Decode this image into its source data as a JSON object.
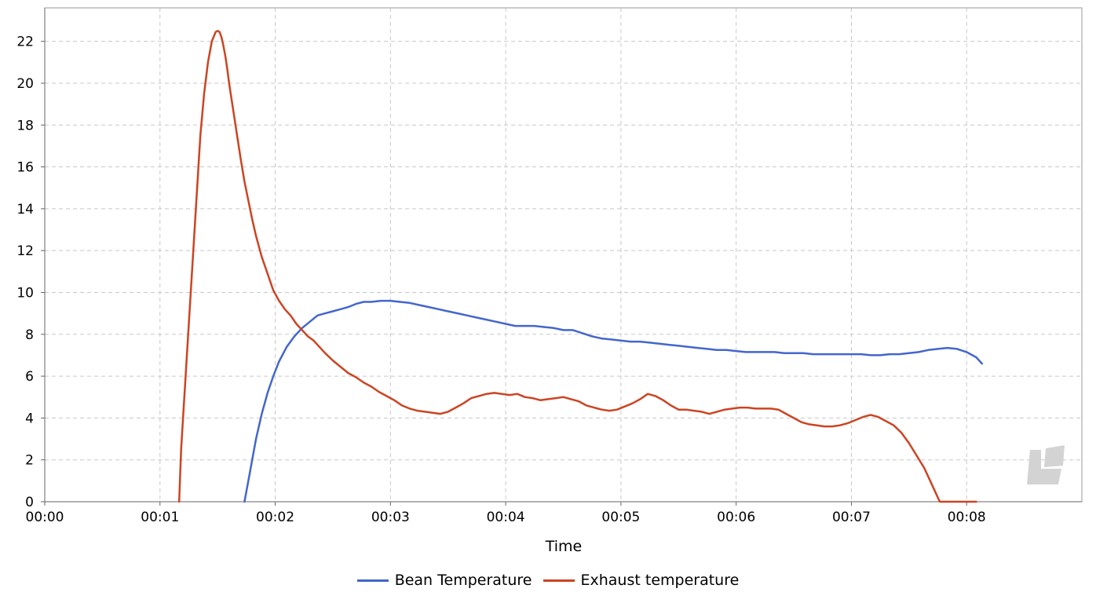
{
  "chart_data": {
    "type": "line",
    "title": "",
    "xlabel": "Time",
    "ylabel": "",
    "xlim": [
      0,
      540
    ],
    "ylim": [
      0,
      23.6
    ],
    "grid": true,
    "legend_position": "bottom",
    "x_ticks": [
      0,
      60,
      120,
      180,
      240,
      300,
      360,
      420,
      480
    ],
    "x_tick_labels": [
      "00:00",
      "00:01",
      "00:02",
      "00:03",
      "00:04",
      "00:05",
      "00:06",
      "00:07",
      "00:08"
    ],
    "y_ticks": [
      0,
      2,
      4,
      6,
      8,
      10,
      12,
      14,
      16,
      18,
      20,
      22
    ],
    "y_tick_labels": [
      "0",
      "2",
      "4",
      "6",
      "8",
      "10",
      "12",
      "14",
      "16",
      "18",
      "20",
      "22"
    ],
    "series": [
      {
        "name": "Bean Temperature",
        "color": "#4466cc",
        "x": [
          104,
          107,
          110,
          113,
          116,
          119,
          122,
          126,
          130,
          134,
          138,
          142,
          146,
          150,
          154,
          158,
          162,
          166,
          170,
          175,
          180,
          185,
          190,
          195,
          200,
          205,
          210,
          215,
          220,
          225,
          230,
          235,
          240,
          245,
          250,
          255,
          260,
          265,
          270,
          275,
          280,
          285,
          290,
          295,
          300,
          305,
          310,
          315,
          320,
          325,
          330,
          335,
          340,
          345,
          350,
          355,
          360,
          365,
          370,
          375,
          380,
          385,
          390,
          395,
          400,
          405,
          410,
          415,
          420,
          425,
          430,
          435,
          440,
          445,
          450,
          455,
          460,
          465,
          470,
          475,
          480,
          485,
          488
        ],
        "y": [
          0,
          1.5,
          3.0,
          4.2,
          5.2,
          6.0,
          6.7,
          7.4,
          7.9,
          8.3,
          8.6,
          8.9,
          9.0,
          9.1,
          9.2,
          9.3,
          9.45,
          9.55,
          9.55,
          9.6,
          9.6,
          9.55,
          9.5,
          9.4,
          9.3,
          9.2,
          9.1,
          9.0,
          8.9,
          8.8,
          8.7,
          8.6,
          8.5,
          8.4,
          8.4,
          8.4,
          8.35,
          8.3,
          8.2,
          8.2,
          8.05,
          7.9,
          7.8,
          7.75,
          7.7,
          7.65,
          7.65,
          7.6,
          7.55,
          7.5,
          7.45,
          7.4,
          7.35,
          7.3,
          7.25,
          7.25,
          7.2,
          7.15,
          7.15,
          7.15,
          7.15,
          7.1,
          7.1,
          7.1,
          7.05,
          7.05,
          7.05,
          7.05,
          7.05,
          7.05,
          7.0,
          7.0,
          7.05,
          7.05,
          7.1,
          7.15,
          7.25,
          7.3,
          7.35,
          7.3,
          7.15,
          6.9,
          6.6
        ]
      },
      {
        "name": "Exhaust temperature",
        "color": "#cc4422",
        "x": [
          70,
          71,
          73,
          75,
          77,
          79,
          81,
          83,
          85,
          87,
          89,
          90,
          91,
          92,
          93,
          94,
          95,
          96,
          98,
          100,
          102,
          104,
          106,
          108,
          110,
          113,
          116,
          119,
          122,
          125,
          128,
          131,
          134,
          137,
          140,
          143,
          146,
          150,
          154,
          158,
          162,
          166,
          170,
          174,
          178,
          182,
          186,
          190,
          194,
          198,
          202,
          206,
          210,
          214,
          218,
          222,
          226,
          230,
          234,
          238,
          242,
          246,
          250,
          254,
          258,
          262,
          266,
          270,
          274,
          278,
          282,
          286,
          290,
          294,
          298,
          302,
          306,
          310,
          314,
          318,
          322,
          326,
          330,
          334,
          338,
          342,
          346,
          350,
          354,
          358,
          362,
          366,
          370,
          374,
          378,
          382,
          386,
          390,
          394,
          398,
          402,
          406,
          410,
          414,
          418,
          422,
          426,
          430,
          434,
          438,
          442,
          446,
          450,
          454,
          458,
          462,
          466,
          470,
          474,
          476,
          478,
          479.5,
          481,
          482,
          483,
          484,
          485
        ],
        "y": [
          0,
          2.5,
          5.5,
          8.5,
          11.5,
          14.5,
          17.5,
          19.5,
          21.0,
          22.0,
          22.45,
          22.5,
          22.45,
          22.2,
          21.8,
          21.3,
          20.7,
          20.0,
          18.8,
          17.6,
          16.4,
          15.3,
          14.4,
          13.5,
          12.7,
          11.7,
          10.9,
          10.1,
          9.6,
          9.2,
          8.9,
          8.5,
          8.2,
          7.9,
          7.7,
          7.4,
          7.1,
          6.75,
          6.45,
          6.15,
          5.95,
          5.7,
          5.5,
          5.25,
          5.05,
          4.85,
          4.6,
          4.45,
          4.35,
          4.3,
          4.25,
          4.2,
          4.3,
          4.5,
          4.7,
          4.95,
          5.05,
          5.15,
          5.2,
          5.15,
          5.1,
          5.15,
          5.0,
          4.95,
          4.85,
          4.9,
          4.95,
          5.0,
          4.9,
          4.8,
          4.6,
          4.5,
          4.4,
          4.35,
          4.4,
          4.55,
          4.7,
          4.9,
          5.15,
          5.05,
          4.85,
          4.6,
          4.4,
          4.4,
          4.35,
          4.3,
          4.2,
          4.3,
          4.4,
          4.45,
          4.5,
          4.5,
          4.45,
          4.45,
          4.45,
          4.4,
          4.2,
          4.0,
          3.8,
          3.7,
          3.65,
          3.6,
          3.6,
          3.65,
          3.75,
          3.9,
          4.05,
          4.15,
          4.05,
          3.85,
          3.65,
          3.3,
          2.8,
          2.2,
          1.6,
          0.8,
          0.0,
          0.0,
          0.0,
          0.0,
          0.0,
          0.0,
          0.0,
          0.0,
          0.0,
          0.0,
          0.0
        ]
      }
    ]
  }
}
